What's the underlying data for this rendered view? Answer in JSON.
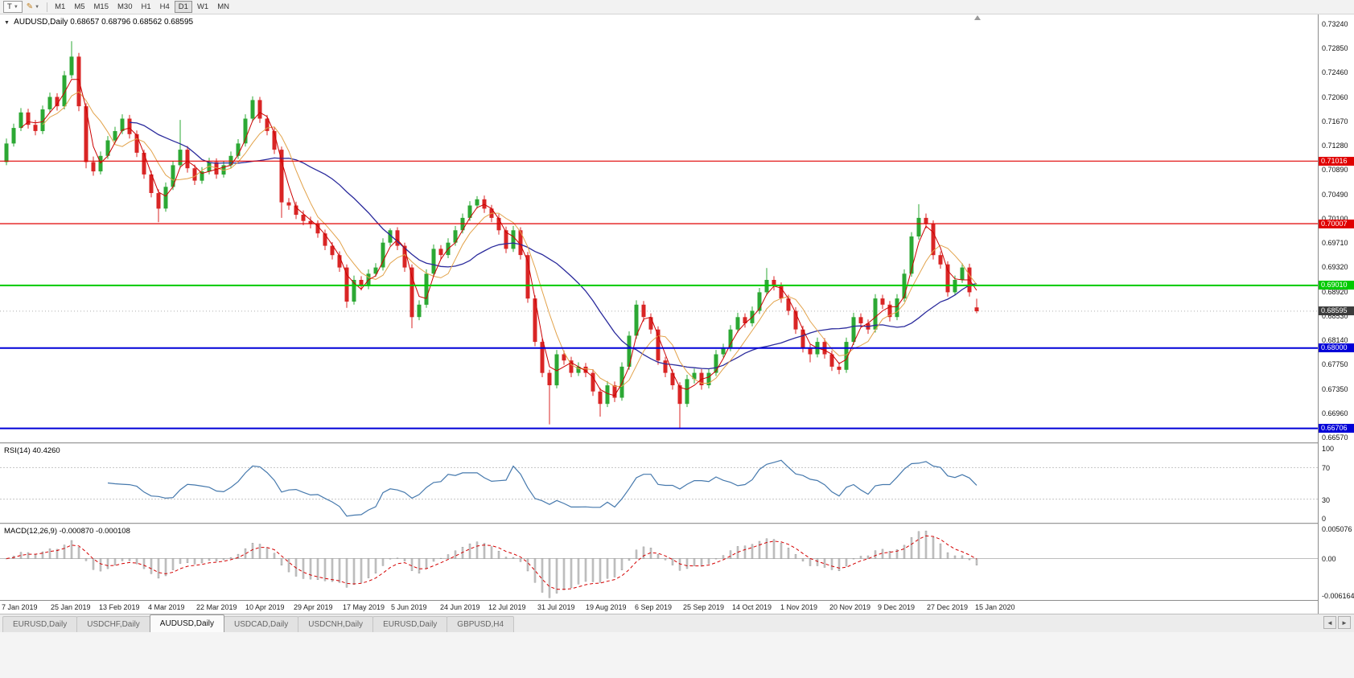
{
  "toolbar": {
    "text_tool_label": "T",
    "timeframes": [
      "M1",
      "M5",
      "M15",
      "M30",
      "H1",
      "H4",
      "D1",
      "W1",
      "MN"
    ],
    "active_timeframe": "D1"
  },
  "chart": {
    "title_arrow": "▼",
    "symbol_title": "AUDUSD,Daily",
    "ohlc_text": "0.68657 0.68796 0.68562 0.68595",
    "axis_labels": [
      "0.73240",
      "0.72850",
      "0.72460",
      "0.72060",
      "0.71670",
      "0.71280",
      "0.70890",
      "0.70490",
      "0.70100",
      "0.69710",
      "0.69320",
      "0.68920",
      "0.68530",
      "0.68140",
      "0.67750",
      "0.67350",
      "0.66960",
      "0.66570"
    ],
    "hlines": [
      {
        "price": 0.71016,
        "label": "0.71016",
        "color": "#e00000",
        "width": 1.2
      },
      {
        "price": 0.70007,
        "label": "0.70007",
        "color": "#e00000",
        "width": 1.2
      },
      {
        "price": 0.6901,
        "label": "0.69010",
        "color": "#00ca00",
        "width": 2
      },
      {
        "price": 0.68,
        "label": "0.68000",
        "color": "#0000d8",
        "width": 2
      },
      {
        "price": 0.66706,
        "label": "0.66706",
        "color": "#0000d8",
        "width": 2
      }
    ],
    "current_price": {
      "value": 0.68595,
      "label": "0.68595",
      "tag_color": "#3c3c3c"
    },
    "colors": {
      "up": "#2ca834",
      "down": "#d92525"
    }
  },
  "rsi": {
    "label": "RSI(14) 40.4260",
    "axis_max": "100",
    "axis_upper": "70",
    "axis_lower": "30",
    "axis_min": "0",
    "levels": [
      70,
      30
    ],
    "line_color": "#4679ad"
  },
  "macd": {
    "label": "MACD(12,26,9) -0.000870 -0.000108",
    "axis_top": "0.005076",
    "axis_zero": "0.00",
    "axis_bottom": "-0.006164",
    "scale_max": 0.005076,
    "scale_min": -0.006164,
    "histogram_color": "#c9c9c9",
    "signal_color": "#d40000"
  },
  "date_axis": {
    "labels": [
      "7 Jan 2019",
      "25 Jan 2019",
      "13 Feb 2019",
      "4 Mar 2019",
      "22 Mar 2019",
      "10 Apr 2019",
      "29 Apr 2019",
      "17 May 2019",
      "5 Jun 2019",
      "24 Jun 2019",
      "12 Jul 2019",
      "31 Jul 2019",
      "19 Aug 2019",
      "6 Sep 2019",
      "25 Sep 2019",
      "14 Oct 2019",
      "1 Nov 2019",
      "20 Nov 2019",
      "9 Dec 2019",
      "27 Dec 2019",
      "15 Jan 2020"
    ]
  },
  "tabs": {
    "items": [
      {
        "label": "EURUSD,Daily",
        "active": false
      },
      {
        "label": "USDCHF,Daily",
        "active": false
      },
      {
        "label": "AUDUSD,Daily",
        "active": true
      },
      {
        "label": "USDCAD,Daily",
        "active": false
      },
      {
        "label": "USDCNH,Daily",
        "active": false
      },
      {
        "label": "EURUSD,Daily",
        "active": false
      },
      {
        "label": "GBPUSD,H4",
        "active": false
      }
    ],
    "scroll_left": "◄",
    "scroll_right": "►"
  },
  "chart_data": {
    "type": "candlestick",
    "symbol": "AUDUSD",
    "timeframe": "Daily",
    "note": "bars aggregate ~2 trading days of Jan 2019 - Jan 2020; prices are x100000; indicator render periods scaled accordingly",
    "price_scale_factor": 100000,
    "view_high": 0.7338,
    "view_low": 0.6648,
    "rsi_period": 14,
    "macd_fast": 5,
    "macd_slow": 10,
    "macd_signal": 4,
    "overlays": [
      {
        "type": "sma",
        "period": 18,
        "color": "#2a2a9c",
        "width": 1.3
      },
      {
        "type": "sma",
        "period": 6,
        "color": "#e2a24a",
        "width": 1
      },
      {
        "type": "sma",
        "period": 3,
        "color": "#cc0000",
        "width": 1
      }
    ],
    "ohlc": [
      [
        71000,
        71380,
        70950,
        71300
      ],
      [
        71300,
        71620,
        71250,
        71550
      ],
      [
        71550,
        71870,
        71500,
        71800
      ],
      [
        71800,
        71860,
        71540,
        71600
      ],
      [
        71600,
        71680,
        71430,
        71500
      ],
      [
        71500,
        71910,
        71450,
        71850
      ],
      [
        71850,
        72120,
        71790,
        72050
      ],
      [
        72050,
        72110,
        71830,
        71900
      ],
      [
        71900,
        72470,
        71850,
        72400
      ],
      [
        72400,
        72950,
        72350,
        72700
      ],
      [
        72700,
        72760,
        71820,
        71900
      ],
      [
        71900,
        71950,
        70900,
        71000
      ],
      [
        71000,
        71090,
        70780,
        70850
      ],
      [
        70850,
        71170,
        70800,
        71100
      ],
      [
        71100,
        71420,
        71050,
        71350
      ],
      [
        71350,
        71570,
        71300,
        71500
      ],
      [
        71500,
        71770,
        71450,
        71700
      ],
      [
        71700,
        71760,
        71380,
        71450
      ],
      [
        71450,
        71510,
        71080,
        71150
      ],
      [
        71150,
        71200,
        70730,
        70800
      ],
      [
        70800,
        70860,
        70430,
        70500
      ],
      [
        70500,
        70560,
        70030,
        70250
      ],
      [
        70250,
        70670,
        70200,
        70600
      ],
      [
        70600,
        71020,
        70550,
        70950
      ],
      [
        70950,
        71680,
        70900,
        71200
      ],
      [
        71200,
        71260,
        70830,
        70900
      ],
      [
        70900,
        70960,
        70630,
        70700
      ],
      [
        70700,
        70920,
        70650,
        70850
      ],
      [
        70850,
        71070,
        70800,
        71000
      ],
      [
        71000,
        71060,
        70730,
        70800
      ],
      [
        70800,
        71020,
        70750,
        70950
      ],
      [
        70950,
        71170,
        70900,
        71100
      ],
      [
        71100,
        71370,
        71050,
        71300
      ],
      [
        71300,
        71770,
        71250,
        71700
      ],
      [
        71700,
        72060,
        71650,
        72000
      ],
      [
        72000,
        72050,
        71630,
        71700
      ],
      [
        71700,
        71760,
        71430,
        71500
      ],
      [
        71500,
        71560,
        71130,
        71200
      ],
      [
        71200,
        71250,
        70100,
        70350
      ],
      [
        70350,
        70420,
        70230,
        70300
      ],
      [
        70300,
        70360,
        70080,
        70150
      ],
      [
        70150,
        70220,
        69980,
        70050
      ],
      [
        70050,
        70120,
        69930,
        70000
      ],
      [
        70000,
        70060,
        69780,
        69850
      ],
      [
        69850,
        69910,
        69580,
        69650
      ],
      [
        69650,
        69710,
        69430,
        69500
      ],
      [
        69500,
        69560,
        69230,
        69300
      ],
      [
        69300,
        69350,
        68650,
        68750
      ],
      [
        68750,
        69170,
        68700,
        69100
      ],
      [
        69100,
        69160,
        68930,
        69000
      ],
      [
        69000,
        69270,
        68950,
        69200
      ],
      [
        69200,
        69370,
        69150,
        69300
      ],
      [
        69300,
        69770,
        69250,
        69700
      ],
      [
        69700,
        69930,
        69650,
        69900
      ],
      [
        69900,
        69950,
        69580,
        69650
      ],
      [
        69650,
        69700,
        69230,
        69300
      ],
      [
        69300,
        69350,
        68320,
        68500
      ],
      [
        68500,
        68770,
        68450,
        68700
      ],
      [
        68700,
        69270,
        68650,
        69200
      ],
      [
        69200,
        69670,
        69150,
        69600
      ],
      [
        69600,
        69660,
        69430,
        69500
      ],
      [
        69500,
        69770,
        69450,
        69700
      ],
      [
        69700,
        69970,
        69650,
        69900
      ],
      [
        69900,
        70170,
        69850,
        70100
      ],
      [
        70100,
        70370,
        70050,
        70300
      ],
      [
        70300,
        70450,
        70250,
        70400
      ],
      [
        70400,
        70460,
        70180,
        70250
      ],
      [
        70250,
        70310,
        70030,
        70100
      ],
      [
        70100,
        70160,
        69830,
        69900
      ],
      [
        69900,
        69960,
        69530,
        69600
      ],
      [
        69600,
        69970,
        69550,
        69900
      ],
      [
        69900,
        69950,
        69430,
        69500
      ],
      [
        69500,
        69550,
        68730,
        68800
      ],
      [
        68800,
        68850,
        68030,
        68100
      ],
      [
        68100,
        68150,
        67530,
        67600
      ],
      [
        67600,
        67650,
        66770,
        67400
      ],
      [
        67400,
        67970,
        67350,
        67900
      ],
      [
        67900,
        67960,
        67730,
        67800
      ],
      [
        67800,
        67860,
        67530,
        67600
      ],
      [
        67600,
        67770,
        67550,
        67700
      ],
      [
        67700,
        67760,
        67530,
        67600
      ],
      [
        67600,
        67660,
        67230,
        67300
      ],
      [
        67300,
        67360,
        66895,
        67100
      ],
      [
        67100,
        67470,
        67050,
        67400
      ],
      [
        67400,
        67460,
        67130,
        67200
      ],
      [
        67200,
        67770,
        67150,
        67700
      ],
      [
        67700,
        68270,
        67650,
        68200
      ],
      [
        68200,
        68770,
        68150,
        68700
      ],
      [
        68700,
        68760,
        68430,
        68500
      ],
      [
        68500,
        68560,
        68230,
        68300
      ],
      [
        68300,
        68350,
        67730,
        67800
      ],
      [
        67800,
        67860,
        67530,
        67600
      ],
      [
        67600,
        67660,
        67330,
        67400
      ],
      [
        67400,
        67450,
        66705,
        67100
      ],
      [
        67100,
        67570,
        67050,
        67500
      ],
      [
        67500,
        67670,
        67430,
        67600
      ],
      [
        67600,
        67660,
        67330,
        67400
      ],
      [
        67400,
        67670,
        67350,
        67600
      ],
      [
        67600,
        67970,
        67550,
        67900
      ],
      [
        67900,
        68070,
        67850,
        68000
      ],
      [
        68000,
        68370,
        67950,
        68300
      ],
      [
        68300,
        68570,
        68250,
        68500
      ],
      [
        68500,
        68560,
        68330,
        68400
      ],
      [
        68400,
        68670,
        68350,
        68600
      ],
      [
        68600,
        68970,
        68550,
        68900
      ],
      [
        68900,
        69290,
        68850,
        69100
      ],
      [
        69100,
        69160,
        68930,
        69000
      ],
      [
        69000,
        69060,
        68730,
        68800
      ],
      [
        68800,
        68860,
        68530,
        68600
      ],
      [
        68600,
        68660,
        68230,
        68300
      ],
      [
        68300,
        68360,
        67930,
        68000
      ],
      [
        68000,
        68060,
        67770,
        67900
      ],
      [
        67900,
        68170,
        67850,
        68100
      ],
      [
        68100,
        68160,
        67830,
        67900
      ],
      [
        67900,
        67960,
        67630,
        67700
      ],
      [
        67700,
        67770,
        67580,
        67650
      ],
      [
        67650,
        68170,
        67600,
        68100
      ],
      [
        68100,
        68570,
        68050,
        68500
      ],
      [
        68500,
        68560,
        68330,
        68400
      ],
      [
        68400,
        68460,
        68230,
        68300
      ],
      [
        68300,
        68870,
        68250,
        68800
      ],
      [
        68800,
        68860,
        68630,
        68700
      ],
      [
        68700,
        68760,
        68430,
        68500
      ],
      [
        68500,
        68870,
        68450,
        68800
      ],
      [
        68800,
        69270,
        68750,
        69200
      ],
      [
        69200,
        69870,
        69150,
        69800
      ],
      [
        69800,
        70320,
        69750,
        70100
      ],
      [
        70100,
        70170,
        69930,
        70000
      ],
      [
        70000,
        70060,
        69430,
        69500
      ],
      [
        69500,
        69560,
        69280,
        69350
      ],
      [
        69350,
        69400,
        68830,
        68900
      ],
      [
        68900,
        69170,
        68850,
        69100
      ],
      [
        69100,
        69370,
        69050,
        69300
      ],
      [
        69300,
        69360,
        68830,
        68900
      ],
      [
        68657,
        68796,
        68562,
        68595
      ]
    ]
  }
}
